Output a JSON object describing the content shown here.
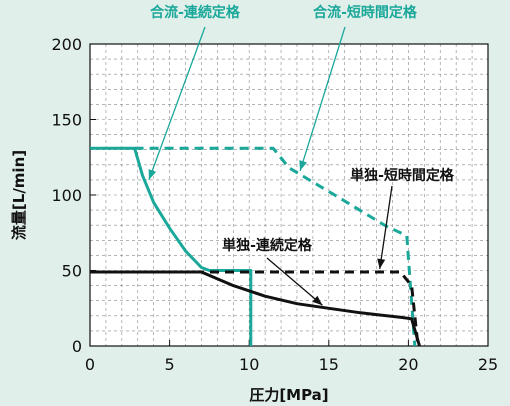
{
  "chart_data": {
    "type": "line",
    "xlabel": "圧力[MPa]",
    "ylabel": "流量[L/min]",
    "xlim": [
      0,
      25
    ],
    "ylim": [
      0,
      200
    ],
    "x_ticks": [
      0,
      5,
      10,
      15,
      20,
      25
    ],
    "y_ticks": [
      0,
      50,
      100,
      150,
      200
    ],
    "grid": true,
    "colors": {
      "teal": "#1aa89a",
      "black": "#111111",
      "grid": "#888888",
      "background": "#e0efe9"
    },
    "series": [
      {
        "name": "合流-連続定格",
        "color": "#1aa89a",
        "style": "solid",
        "points": [
          [
            0,
            131
          ],
          [
            2.8,
            131
          ],
          [
            3.3,
            113
          ],
          [
            4,
            95
          ],
          [
            5,
            78
          ],
          [
            6,
            63
          ],
          [
            7,
            52
          ],
          [
            7.5,
            50
          ],
          [
            10.1,
            50
          ],
          [
            10.1,
            0
          ]
        ]
      },
      {
        "name": "合流-短時間定格",
        "color": "#1aa89a",
        "style": "dashed",
        "points": [
          [
            2.8,
            131
          ],
          [
            11.5,
            131
          ],
          [
            12.5,
            118
          ],
          [
            16,
            96
          ],
          [
            18.5,
            80
          ],
          [
            19.9,
            73
          ],
          [
            20.4,
            0
          ]
        ]
      },
      {
        "name": "単独-短時間定格",
        "color": "#111111",
        "style": "dashed",
        "points": [
          [
            0,
            49
          ],
          [
            19.5,
            49
          ],
          [
            20.2,
            40
          ],
          [
            20.6,
            0
          ]
        ]
      },
      {
        "name": "単独-連続定格",
        "color": "#111111",
        "style": "solid",
        "points": [
          [
            0,
            49
          ],
          [
            7,
            49
          ],
          [
            9,
            40
          ],
          [
            11,
            33
          ],
          [
            13,
            28
          ],
          [
            15,
            25
          ],
          [
            17,
            22
          ],
          [
            19.5,
            19
          ],
          [
            20.2,
            18
          ],
          [
            20.7,
            0
          ]
        ]
      }
    ],
    "annotations": [
      {
        "text": "合流-連続定格",
        "target": [
          3.7,
          110
        ]
      },
      {
        "text": "合流-短時間定格",
        "target": [
          13.2,
          116
        ]
      },
      {
        "text": "単独-短時間定格",
        "target": [
          18.2,
          51
        ]
      },
      {
        "text": "単独-連続定格",
        "target": [
          14.6,
          27
        ]
      }
    ]
  }
}
